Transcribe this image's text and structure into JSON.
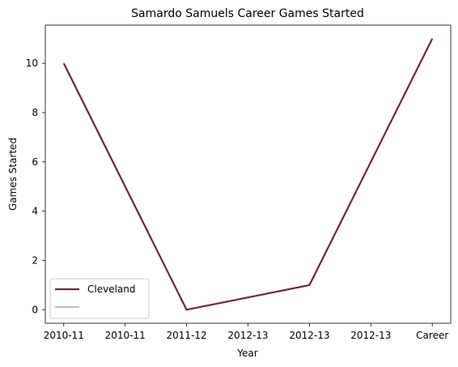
{
  "chart_data": {
    "type": "line",
    "title": "Samardo Samuels Career Games Started",
    "xlabel": "Year",
    "ylabel": "Games Started",
    "categories": [
      "2010-11",
      "2010-11",
      "2011-12",
      "2012-13",
      "2012-13",
      "2012-13",
      "Career"
    ],
    "x_positions": [
      0,
      1,
      2,
      3,
      4,
      5,
      6
    ],
    "ylim": [
      -0.55,
      11.55
    ],
    "xlim": [
      -0.3,
      6.3
    ],
    "y_ticks": [
      0,
      2,
      4,
      6,
      8,
      10
    ],
    "grid": false,
    "legend_position": "lower-left",
    "series": [
      {
        "name": "Cleveland",
        "color": "#6f263d",
        "x": [
          0,
          2,
          4,
          6
        ],
        "y": [
          10,
          0,
          1,
          11
        ]
      },
      {
        "name": "",
        "color": "#c0c0c0",
        "x": [],
        "y": []
      }
    ]
  }
}
